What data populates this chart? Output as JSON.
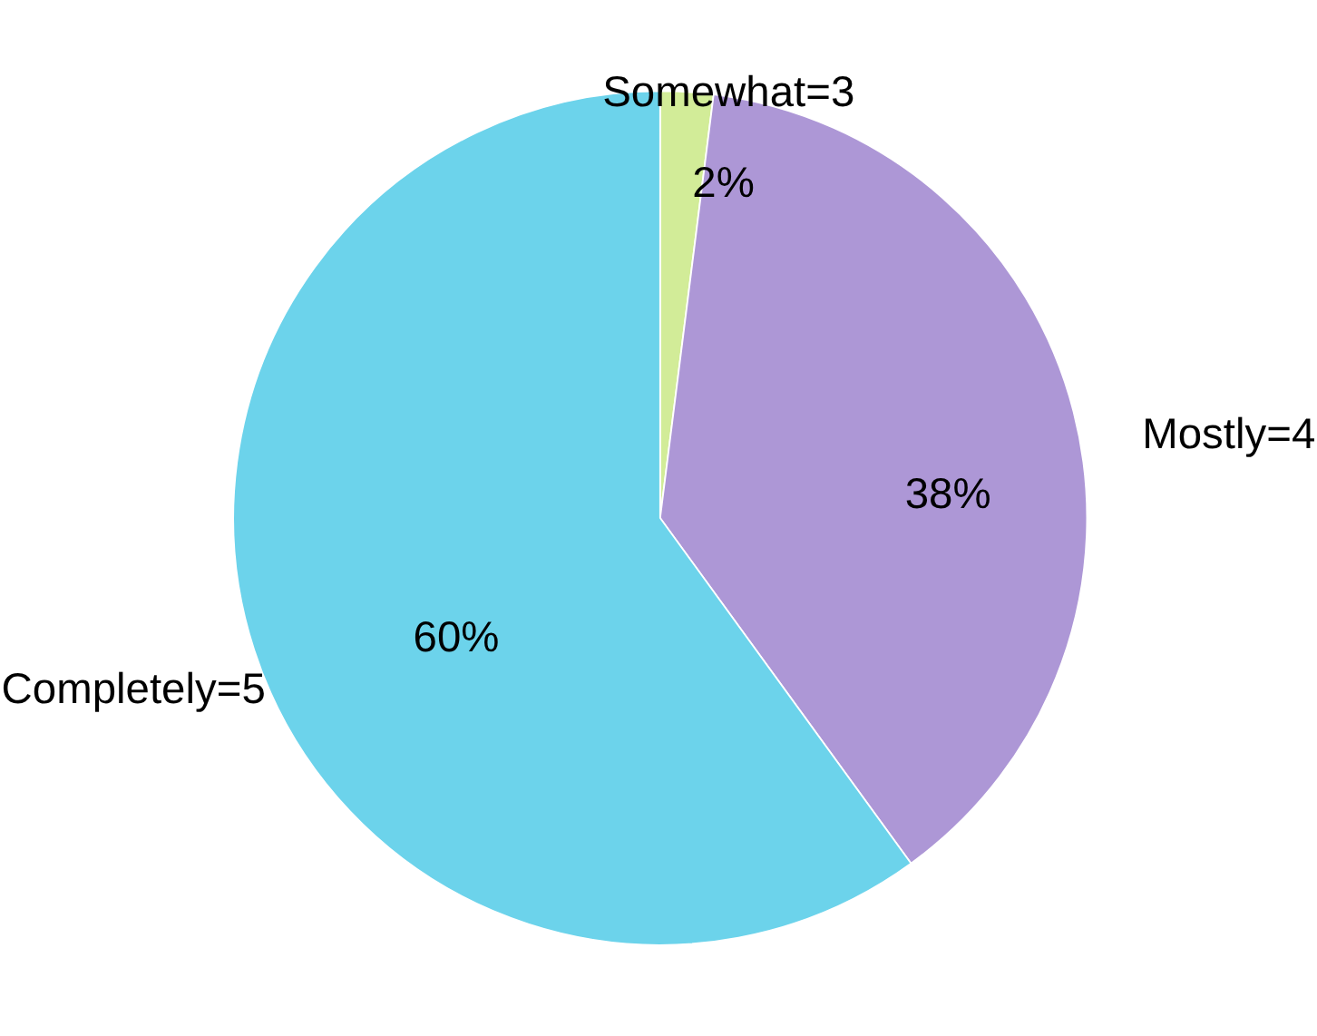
{
  "chart_data": {
    "type": "pie",
    "categories": [
      "Somewhat=3",
      "Mostly=4",
      "Completely=5"
    ],
    "values": [
      2,
      38,
      60
    ],
    "colors": [
      "#d2ec98",
      "#ad97d6",
      "#6cd3eb"
    ],
    "value_labels": [
      "2%",
      "38%",
      "60%"
    ],
    "legend": false
  }
}
